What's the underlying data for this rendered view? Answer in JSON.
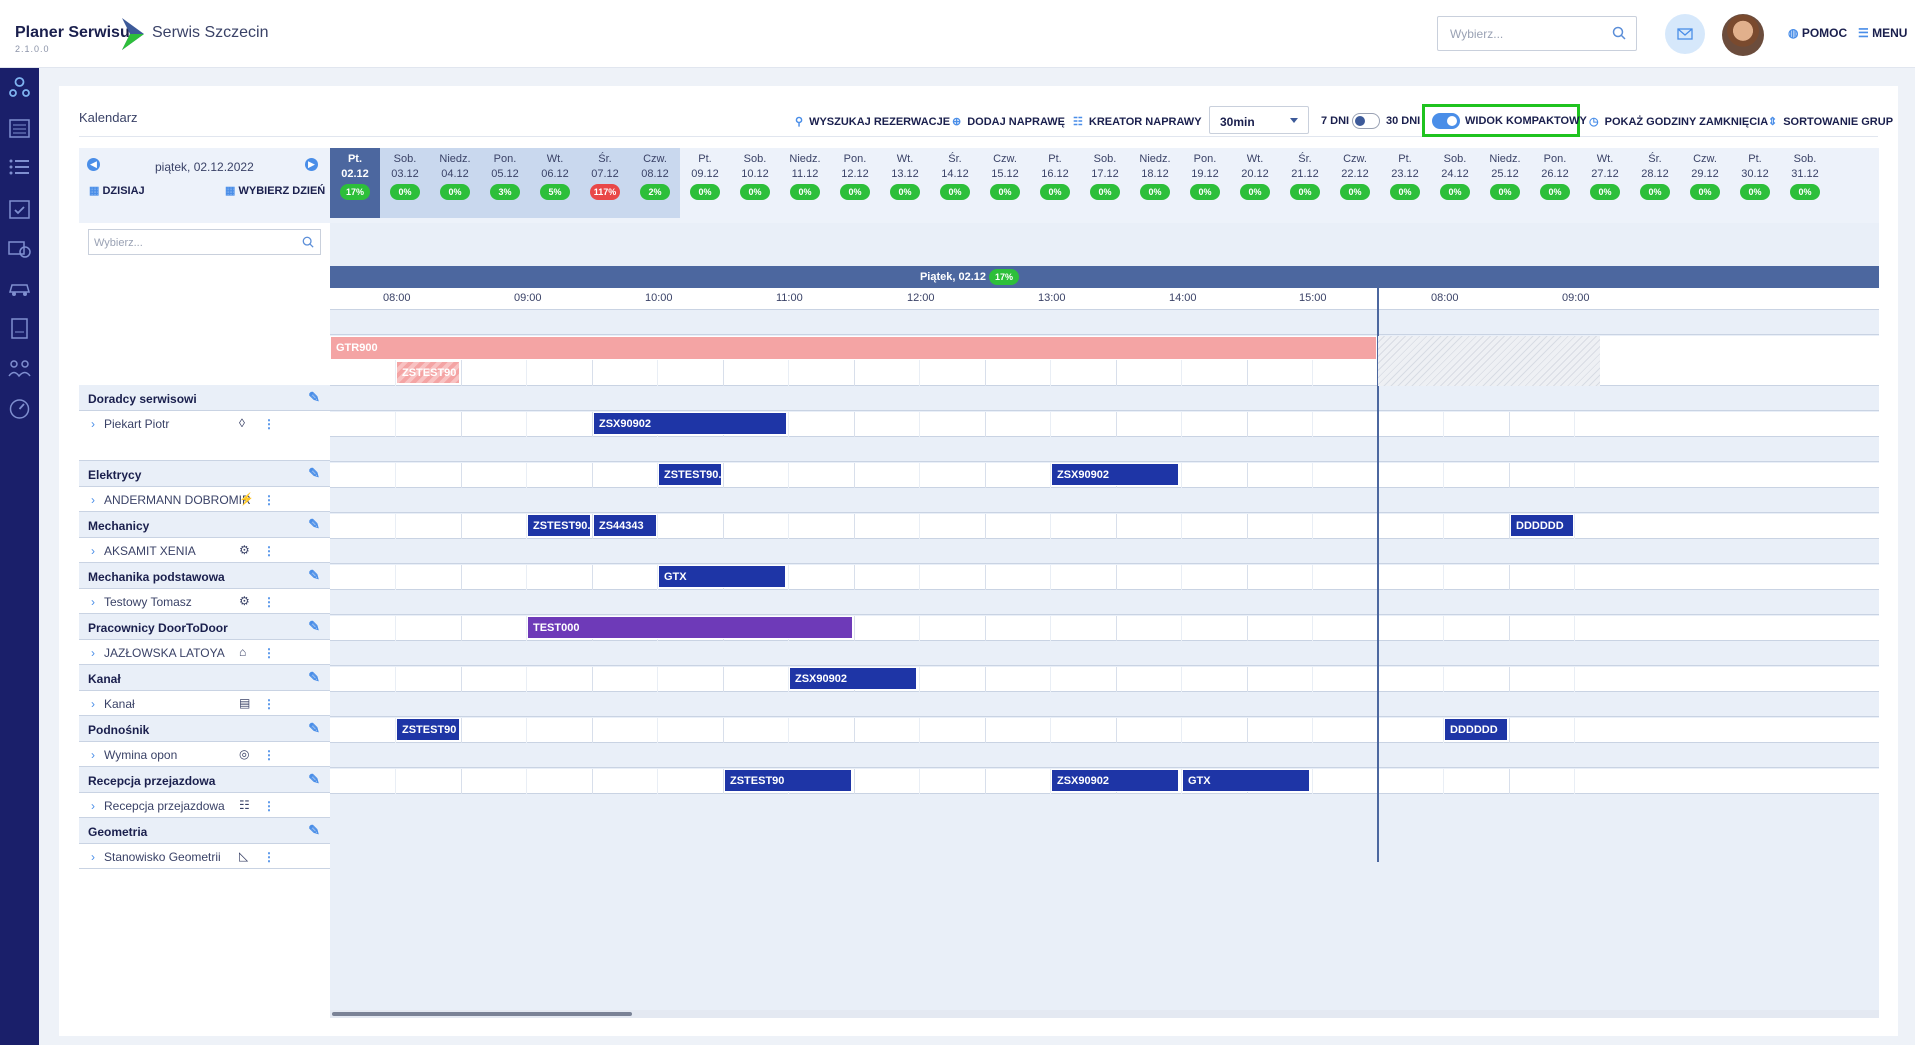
{
  "header": {
    "brand": "Planer Serwisu",
    "version": "2.1.0.0",
    "subtitle": "Serwis Szczecin",
    "search_placeholder": "Wybierz...",
    "help": "POMOC",
    "menu": "MENU"
  },
  "calendar": {
    "title": "Kalendarz",
    "toolbar": {
      "search": "WYSZUKAJ REZERWACJE",
      "add": "DODAJ NAPRAWĘ",
      "wizard": "KREATOR NAPRAWY",
      "interval": "30min",
      "days7": "7 DNI",
      "days30": "30 DNI",
      "compact": "WIDOK KOMPAKTOWY",
      "closing": "POKAŻ GODZINY ZAMKNIĘCIA",
      "sorting": "SORTOWANIE GRUP"
    },
    "current_date": "piątek, 02.12.2022",
    "today": "DZISIAJ",
    "pick_day": "WYBIERZ DZIEŃ",
    "filter_placeholder": "Wybierz...",
    "days": [
      {
        "w": "Pt.",
        "d": "02.12",
        "p": "17%",
        "active": true
      },
      {
        "w": "Sob.",
        "d": "03.12",
        "p": "0%"
      },
      {
        "w": "Niedz.",
        "d": "04.12",
        "p": "0%"
      },
      {
        "w": "Pon.",
        "d": "05.12",
        "p": "3%"
      },
      {
        "w": "Wt.",
        "d": "06.12",
        "p": "5%"
      },
      {
        "w": "Śr.",
        "d": "07.12",
        "p": "117%",
        "red": true
      },
      {
        "w": "Czw.",
        "d": "08.12",
        "p": "2%"
      },
      {
        "w": "Pt.",
        "d": "09.12",
        "p": "0%"
      },
      {
        "w": "Sob.",
        "d": "10.12",
        "p": "0%"
      },
      {
        "w": "Niedz.",
        "d": "11.12",
        "p": "0%"
      },
      {
        "w": "Pon.",
        "d": "12.12",
        "p": "0%"
      },
      {
        "w": "Wt.",
        "d": "13.12",
        "p": "0%"
      },
      {
        "w": "Śr.",
        "d": "14.12",
        "p": "0%"
      },
      {
        "w": "Czw.",
        "d": "15.12",
        "p": "0%"
      },
      {
        "w": "Pt.",
        "d": "16.12",
        "p": "0%"
      },
      {
        "w": "Sob.",
        "d": "17.12",
        "p": "0%"
      },
      {
        "w": "Niedz.",
        "d": "18.12",
        "p": "0%"
      },
      {
        "w": "Pon.",
        "d": "19.12",
        "p": "0%"
      },
      {
        "w": "Wt.",
        "d": "20.12",
        "p": "0%"
      },
      {
        "w": "Śr.",
        "d": "21.12",
        "p": "0%"
      },
      {
        "w": "Czw.",
        "d": "22.12",
        "p": "0%"
      },
      {
        "w": "Pt.",
        "d": "23.12",
        "p": "0%"
      },
      {
        "w": "Sob.",
        "d": "24.12",
        "p": "0%"
      },
      {
        "w": "Niedz.",
        "d": "25.12",
        "p": "0%"
      },
      {
        "w": "Pon.",
        "d": "26.12",
        "p": "0%"
      },
      {
        "w": "Wt.",
        "d": "27.12",
        "p": "0%"
      },
      {
        "w": "Śr.",
        "d": "28.12",
        "p": "0%"
      },
      {
        "w": "Czw.",
        "d": "29.12",
        "p": "0%"
      },
      {
        "w": "Pt.",
        "d": "30.12",
        "p": "0%"
      },
      {
        "w": "Sob.",
        "d": "31.12",
        "p": "0%"
      }
    ],
    "day_banner": "Piątek, 02.12",
    "day_banner_pct": "17%",
    "hours": [
      "08:00",
      "09:00",
      "10:00",
      "11:00",
      "12:00",
      "13:00",
      "14:00",
      "15:00",
      "08:00",
      "09:00"
    ],
    "groups": [
      {
        "name": "Doradcy serwisowi",
        "resource": "Piekart Piotr"
      },
      {
        "name": "Elektrycy",
        "resource": "ANDERMANN DOBROMIR"
      },
      {
        "name": "Mechanicy",
        "resource": "AKSAMIT XENIA"
      },
      {
        "name": "Mechanika podstawowa",
        "resource": "Testowy Tomasz"
      },
      {
        "name": "Pracownicy DoorToDoor",
        "resource": "JAZŁOWSKA LATOYA"
      },
      {
        "name": "Kanał",
        "resource": "Kanał"
      },
      {
        "name": "Podnośnik",
        "resource": "Wymina opon"
      },
      {
        "name": "Recepcja przejazdowa",
        "resource": "Recepcja przejazdowa"
      },
      {
        "name": "Geometria",
        "resource": "Stanowisko Geometrii"
      }
    ],
    "events": {
      "e1": "GTR900",
      "e2": "ZSTEST90",
      "e3": "ZSX90902",
      "e4": "ZSTEST90...",
      "e5": "ZSX90902",
      "e6": "ZSTEST90...",
      "e7": "ZS44343",
      "e8": "DDDDDD",
      "e9": "GTX",
      "e10": "TEST000",
      "e11": "ZSX90902",
      "e12": "ZSTEST90",
      "e13": "DDDDDD",
      "e14": "ZSTEST90",
      "e15": "ZSX90902",
      "e16": "GTX"
    }
  }
}
